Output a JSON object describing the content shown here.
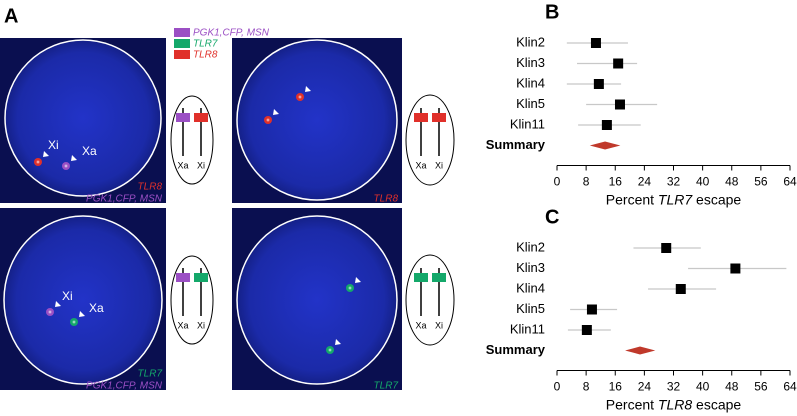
{
  "panel_a": {
    "label": "A",
    "legend": [
      {
        "name": "PGK1,CFP, MSN",
        "color": "#9b4fc4"
      },
      {
        "name": "TLR7",
        "color": "#14a86a"
      },
      {
        "name": "TLR8",
        "color": "#e0302a"
      }
    ],
    "images": [
      {
        "markers": [
          "Xi",
          "Xa"
        ],
        "captions": [
          {
            "text": "TLR8",
            "color": "#e0302a"
          },
          {
            "text": "PGK1,CFP, MSN",
            "color": "#9b4fc4"
          }
        ],
        "chromosomes": [
          {
            "label": "Xa",
            "color": "#9b4fc4"
          },
          {
            "label": "Xi",
            "color": "#e0302a"
          }
        ]
      },
      {
        "markers": [],
        "captions": [
          {
            "text": "TLR8",
            "color": "#e0302a"
          }
        ],
        "chromosomes": [
          {
            "label": "Xa",
            "color": "#e0302a"
          },
          {
            "label": "Xi",
            "color": "#e0302a"
          }
        ]
      },
      {
        "markers": [
          "Xi",
          "Xa"
        ],
        "captions": [
          {
            "text": "TLR7",
            "color": "#14a86a"
          },
          {
            "text": "PGK1,CFP, MSN",
            "color": "#9b4fc4"
          }
        ],
        "chromosomes": [
          {
            "label": "Xa",
            "color": "#9b4fc4"
          },
          {
            "label": "Xi",
            "color": "#14a86a"
          }
        ]
      },
      {
        "markers": [],
        "captions": [
          {
            "text": "TLR7",
            "color": "#14a86a"
          }
        ],
        "chromosomes": [
          {
            "label": "Xa",
            "color": "#14a86a"
          },
          {
            "label": "Xi",
            "color": "#14a86a"
          }
        ]
      }
    ]
  },
  "chart_data": [
    {
      "type": "forest",
      "label": "B",
      "categories": [
        "Klin2",
        "Klin3",
        "Klin4",
        "Klin5",
        "Klin11"
      ],
      "values": [
        10.7,
        16.8,
        11.5,
        17.3,
        13.7
      ],
      "lower": [
        2.7,
        5.5,
        2.7,
        8,
        5.8
      ],
      "upper": [
        19.5,
        22,
        17.6,
        27.5,
        23
      ],
      "summary_label": "Summary",
      "summary": {
        "value": 13.2,
        "lower": 9,
        "upper": 17.4
      },
      "xlim": [
        0,
        64
      ],
      "xticks": [
        0,
        8,
        16,
        24,
        32,
        40,
        48,
        56,
        64
      ],
      "xlabel": "Percent TLR7 escape",
      "marker_color": "#000000",
      "summary_color": "#c0392b"
    },
    {
      "type": "forest",
      "label": "C",
      "categories": [
        "Klin2",
        "Klin3",
        "Klin4",
        "Klin5",
        "Klin11"
      ],
      "values": [
        30,
        49,
        34,
        9.6,
        8.2
      ],
      "lower": [
        21,
        36,
        25,
        3.6,
        3
      ],
      "upper": [
        39.5,
        63,
        43.7,
        16.5,
        14.8
      ],
      "summary_label": "Summary",
      "summary": {
        "value": 22.8,
        "lower": 18.7,
        "upper": 27
      },
      "xlim": [
        0,
        64
      ],
      "xticks": [
        0,
        8,
        16,
        24,
        32,
        40,
        48,
        56,
        64
      ],
      "xlabel": "Percent TLR8 escape",
      "marker_color": "#000000",
      "summary_color": "#c0392b"
    }
  ]
}
